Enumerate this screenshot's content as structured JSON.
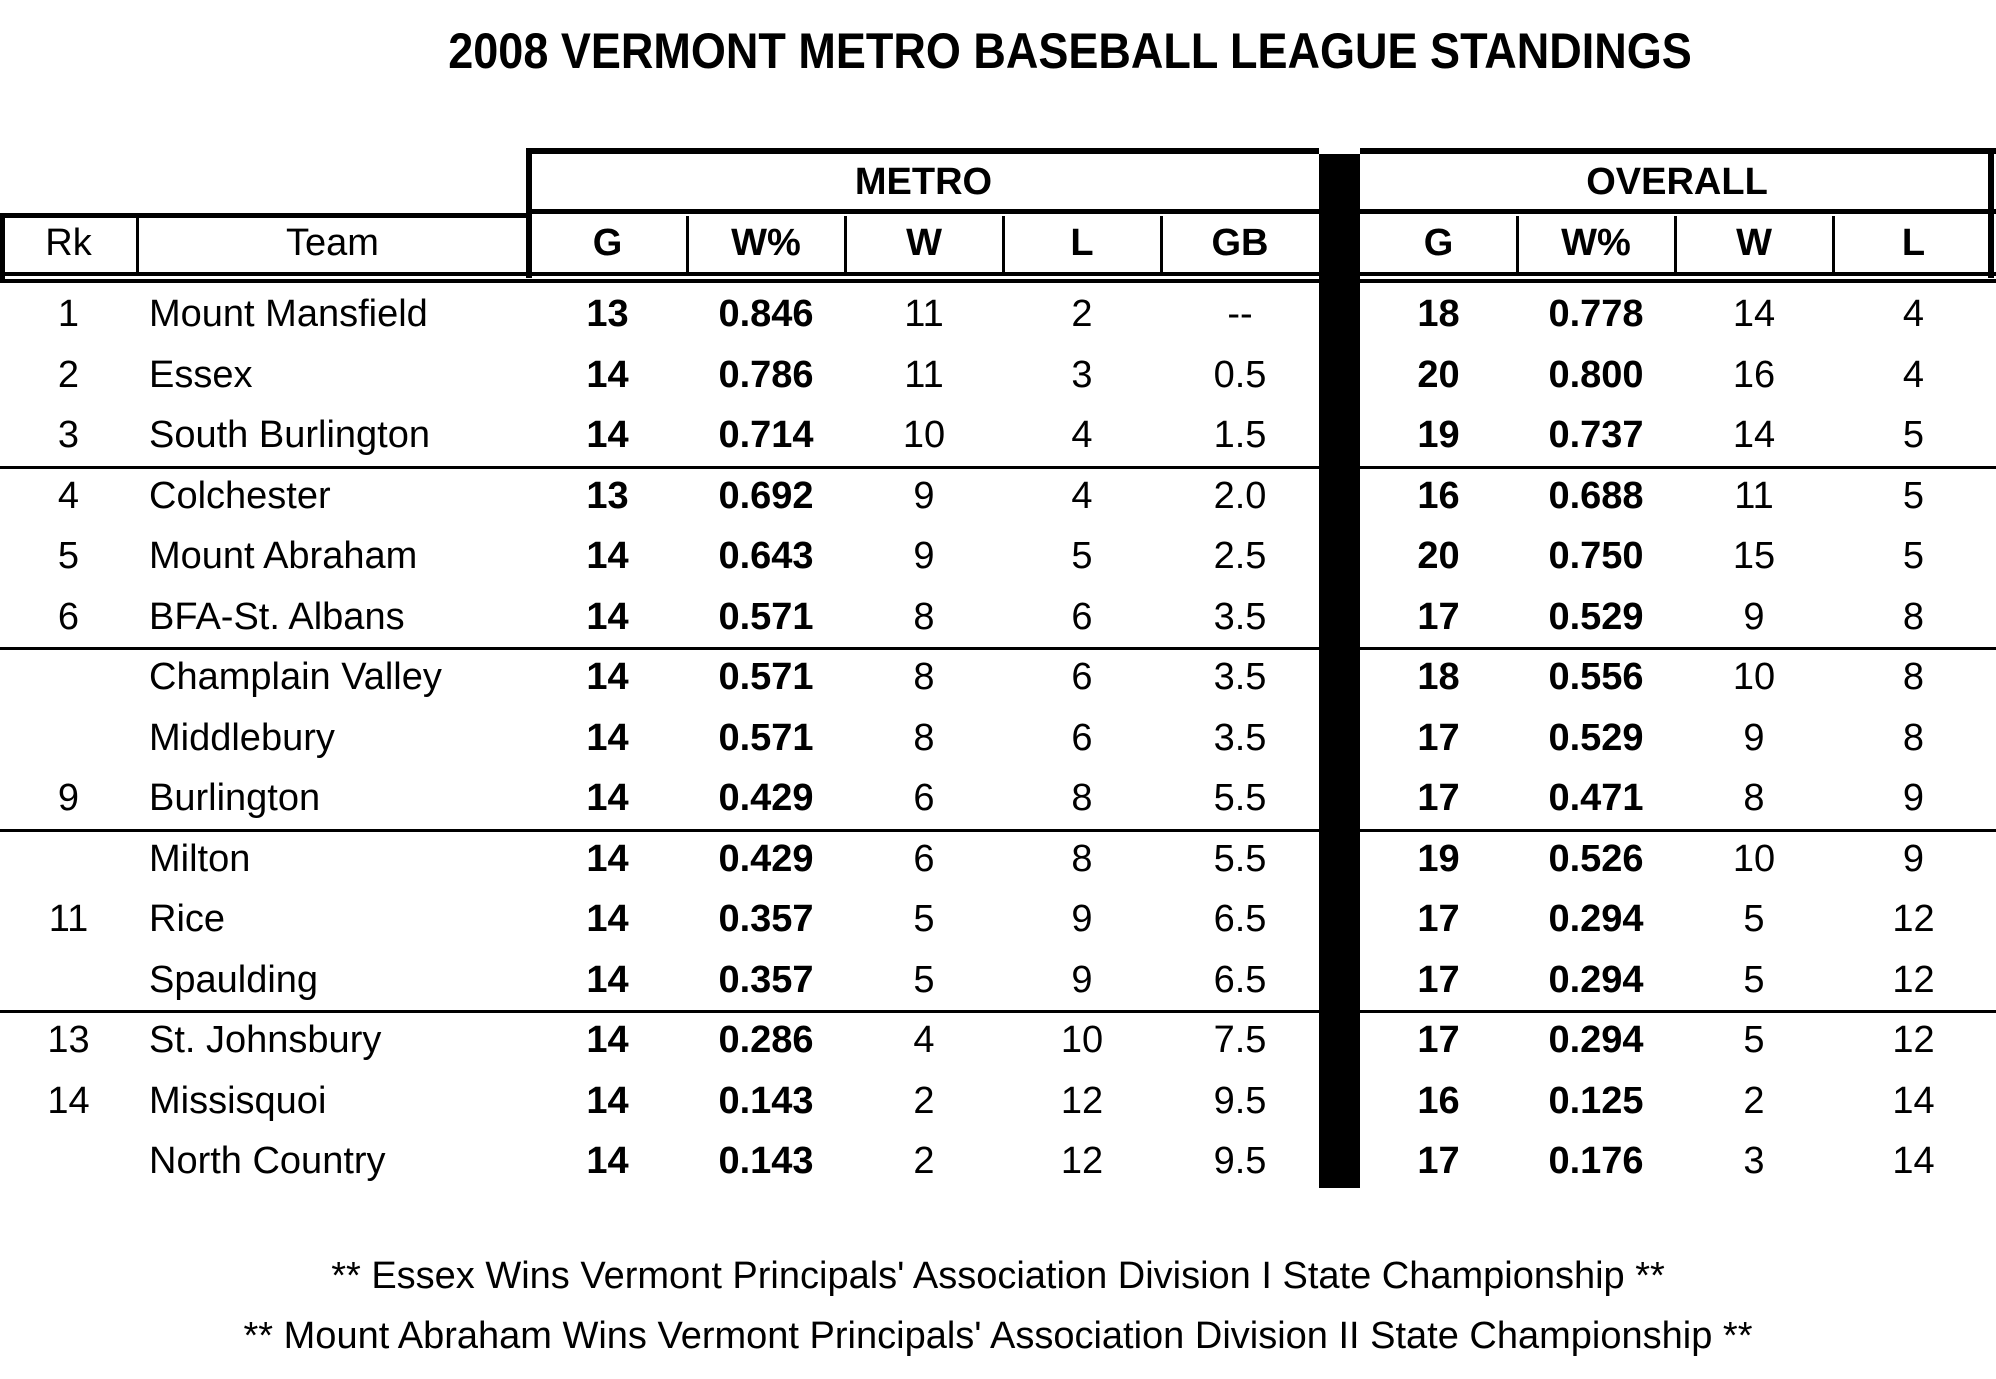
{
  "title": "2008 VERMONT METRO BASEBALL LEAGUE STANDINGS",
  "groups": {
    "metro": "METRO",
    "overall": "OVERALL"
  },
  "headers": [
    "Rk",
    "Team",
    "G",
    "W%",
    "W",
    "L",
    "GB",
    "G",
    "W%",
    "W",
    "L"
  ],
  "rows": [
    [
      "1",
      "Mount Mansfield",
      "13",
      "0.846",
      "11",
      "2",
      "--",
      "18",
      "0.778",
      "14",
      "4"
    ],
    [
      "2",
      "Essex",
      "14",
      "0.786",
      "11",
      "3",
      "0.5",
      "20",
      "0.800",
      "16",
      "4"
    ],
    [
      "3",
      "South Burlington",
      "14",
      "0.714",
      "10",
      "4",
      "1.5",
      "19",
      "0.737",
      "14",
      "5"
    ],
    [
      "4",
      "Colchester",
      "13",
      "0.692",
      "9",
      "4",
      "2.0",
      "16",
      "0.688",
      "11",
      "5"
    ],
    [
      "5",
      "Mount Abraham",
      "14",
      "0.643",
      "9",
      "5",
      "2.5",
      "20",
      "0.750",
      "15",
      "5"
    ],
    [
      "6",
      "BFA-St. Albans",
      "14",
      "0.571",
      "8",
      "6",
      "3.5",
      "17",
      "0.529",
      "9",
      "8"
    ],
    [
      "",
      "Champlain Valley",
      "14",
      "0.571",
      "8",
      "6",
      "3.5",
      "18",
      "0.556",
      "10",
      "8"
    ],
    [
      "",
      "Middlebury",
      "14",
      "0.571",
      "8",
      "6",
      "3.5",
      "17",
      "0.529",
      "9",
      "8"
    ],
    [
      "9",
      "Burlington",
      "14",
      "0.429",
      "6",
      "8",
      "5.5",
      "17",
      "0.471",
      "8",
      "9"
    ],
    [
      "",
      "Milton",
      "14",
      "0.429",
      "6",
      "8",
      "5.5",
      "19",
      "0.526",
      "10",
      "9"
    ],
    [
      "11",
      "Rice",
      "14",
      "0.357",
      "5",
      "9",
      "6.5",
      "17",
      "0.294",
      "5",
      "12"
    ],
    [
      "",
      "Spaulding",
      "14",
      "0.357",
      "5",
      "9",
      "6.5",
      "17",
      "0.294",
      "5",
      "12"
    ],
    [
      "13",
      "St. Johnsbury",
      "14",
      "0.286",
      "4",
      "10",
      "7.5",
      "17",
      "0.294",
      "5",
      "12"
    ],
    [
      "14",
      "Missisquoi",
      "14",
      "0.143",
      "2",
      "12",
      "9.5",
      "16",
      "0.125",
      "2",
      "14"
    ],
    [
      "",
      "North Country",
      "14",
      "0.143",
      "2",
      "12",
      "9.5",
      "17",
      "0.176",
      "3",
      "14"
    ]
  ],
  "footnotes": [
    "** Essex Wins Vermont Principals' Association Division I State Championship **",
    "** Mount Abraham Wins Vermont Principals' Association Division II State Championship **"
  ]
}
